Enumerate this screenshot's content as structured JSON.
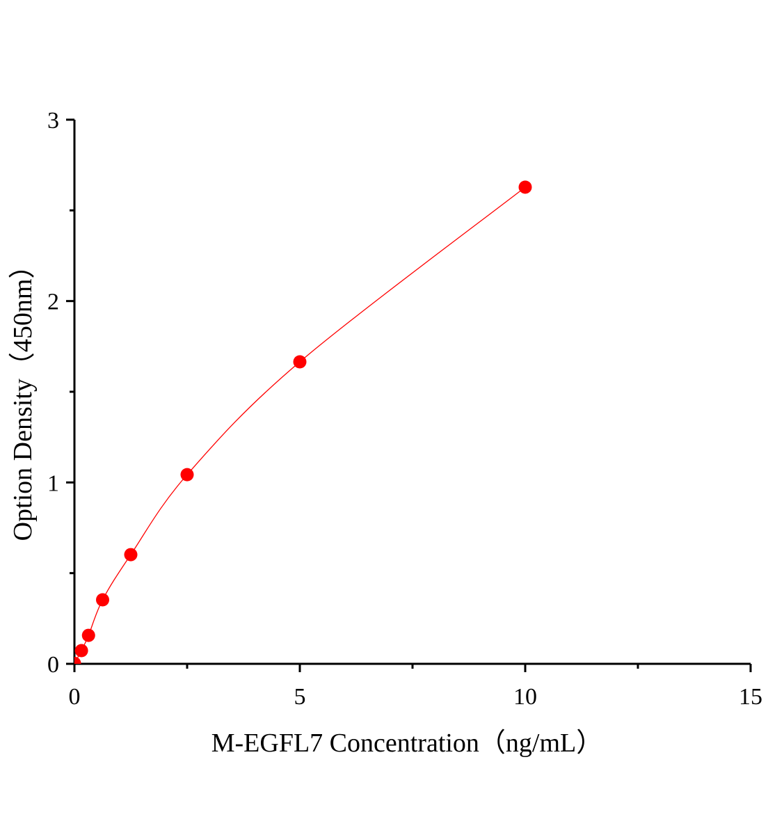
{
  "chart_data": {
    "type": "scatter",
    "title": "",
    "xlabel": "M-EGFL7 Concentration（ng/mL）",
    "ylabel": "Option Density（450nm）",
    "xlim": [
      0,
      15
    ],
    "ylim": [
      0,
      3
    ],
    "xticks": [
      0,
      5,
      10,
      15
    ],
    "yticks": [
      0,
      1,
      2,
      3
    ],
    "x_minor_ticks": [
      2.5,
      7.5,
      12.5
    ],
    "y_minor_ticks": [
      0.5,
      1.5,
      2.5
    ],
    "grid": false,
    "legend": "none",
    "series": [
      {
        "x": [
          0,
          0.156,
          0.3125,
          0.625,
          1.25,
          2.5,
          5,
          10
        ],
        "y": [
          0.003,
          0.073,
          0.157,
          0.353,
          0.602,
          1.043,
          1.665,
          2.628
        ],
        "marker_color": "#ff0000",
        "fit_line": true,
        "line_color": "#ff0000"
      }
    ]
  }
}
